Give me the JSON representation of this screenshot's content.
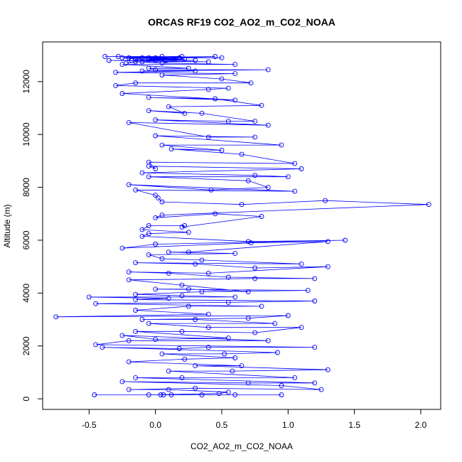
{
  "chart_data": {
    "type": "line",
    "title": "ORCAS RF19 CO2_AO2_m_CO2_NOAA",
    "xlabel": "CO2_AO2_m_CO2_NOAA",
    "ylabel": "Altitude (m)",
    "xlim": [
      -0.85,
      2.15
    ],
    "ylim": [
      -400,
      13500
    ],
    "xticks": [
      {
        "value": -0.5,
        "label": "-0.5"
      },
      {
        "value": 0.0,
        "label": "0.0"
      },
      {
        "value": 0.5,
        "label": "0.5"
      },
      {
        "value": 1.0,
        "label": "1.0"
      },
      {
        "value": 1.5,
        "label": "1.5"
      },
      {
        "value": 2.0,
        "label": "2.0"
      }
    ],
    "yticks": [
      {
        "value": 0,
        "label": "0"
      },
      {
        "value": 2000,
        "label": "2000"
      },
      {
        "value": 4000,
        "label": "4000"
      },
      {
        "value": 6000,
        "label": "6000"
      },
      {
        "value": 8000,
        "label": "8000"
      },
      {
        "value": 10000,
        "label": "10000"
      },
      {
        "value": 12000,
        "label": "12000"
      }
    ],
    "grid": false,
    "marker": "open-circle",
    "color": "#0000ff",
    "series": [
      {
        "points": [
          [
            -0.46,
            150
          ],
          [
            0.04,
            150
          ],
          [
            0.12,
            150
          ],
          [
            0.35,
            150
          ],
          [
            0.6,
            150
          ],
          [
            0.95,
            150
          ],
          [
            0.06,
            150
          ],
          [
            -0.05,
            150
          ],
          [
            0.48,
            200
          ],
          [
            0.55,
            250
          ],
          [
            0.1,
            350
          ],
          [
            -0.2,
            350
          ],
          [
            0.3,
            400
          ],
          [
            1.25,
            350
          ],
          [
            0.95,
            500
          ],
          [
            -0.25,
            650
          ],
          [
            0.7,
            600
          ],
          [
            1.2,
            600
          ],
          [
            -0.15,
            800
          ],
          [
            0.2,
            800
          ],
          [
            1.05,
            800
          ],
          [
            0.1,
            1050
          ],
          [
            0.58,
            1050
          ],
          [
            1.3,
            1100
          ],
          [
            0.3,
            1250
          ],
          [
            0.65,
            1250
          ],
          [
            -0.2,
            1400
          ],
          [
            0.22,
            1500
          ],
          [
            0.6,
            1550
          ],
          [
            0.05,
            1700
          ],
          [
            0.52,
            1700
          ],
          [
            0.92,
            1750
          ],
          [
            -0.4,
            1950
          ],
          [
            0.18,
            1900
          ],
          [
            0.4,
            1950
          ],
          [
            1.2,
            1950
          ],
          [
            -0.45,
            2050
          ],
          [
            -0.2,
            2200
          ],
          [
            0.85,
            2200
          ],
          [
            -0.25,
            2400
          ],
          [
            0.0,
            2250
          ],
          [
            0.55,
            2300
          ],
          [
            -0.15,
            2550
          ],
          [
            0.2,
            2550
          ],
          [
            0.75,
            2500
          ],
          [
            1.1,
            2700
          ],
          [
            0.4,
            2700
          ],
          [
            -0.05,
            2850
          ],
          [
            0.9,
            2850
          ],
          [
            0.3,
            3000
          ],
          [
            -0.1,
            3000
          ],
          [
            0.7,
            3050
          ],
          [
            1.0,
            3150
          ],
          [
            -0.75,
            3100
          ],
          [
            0.4,
            3200
          ],
          [
            -0.15,
            3350
          ],
          [
            0.25,
            3500
          ],
          [
            0.8,
            3500
          ],
          [
            -0.45,
            3600
          ],
          [
            0.55,
            3650
          ],
          [
            1.2,
            3700
          ],
          [
            -0.15,
            3750
          ],
          [
            0.1,
            3800
          ],
          [
            -0.5,
            3850
          ],
          [
            0.6,
            3850
          ],
          [
            0.2,
            3900
          ],
          [
            -0.15,
            3950
          ],
          [
            0.35,
            4050
          ],
          [
            1.15,
            4100
          ],
          [
            0.0,
            4150
          ],
          [
            0.25,
            4150
          ],
          [
            0.7,
            4050
          ],
          [
            0.2,
            4300
          ],
          [
            -0.2,
            4500
          ],
          [
            0.75,
            4550
          ],
          [
            1.2,
            4550
          ],
          [
            0.55,
            4600
          ],
          [
            0.1,
            4750
          ],
          [
            -0.2,
            4800
          ],
          [
            0.4,
            4750
          ],
          [
            1.3,
            5000
          ],
          [
            0.75,
            4950
          ],
          [
            0.3,
            5100
          ],
          [
            -0.15,
            5150
          ],
          [
            1.1,
            5100
          ],
          [
            0.35,
            5250
          ],
          [
            0.05,
            5300
          ],
          [
            -0.05,
            5450
          ],
          [
            0.6,
            5500
          ],
          [
            0.1,
            5550
          ],
          [
            0.25,
            5550
          ],
          [
            1.3,
            5950
          ],
          [
            0.72,
            5900
          ],
          [
            -0.25,
            5700
          ],
          [
            0.0,
            5850
          ],
          [
            1.43,
            6000
          ],
          [
            0.7,
            5950
          ],
          [
            -0.1,
            6150
          ],
          [
            -0.05,
            6250
          ],
          [
            0.25,
            6300
          ],
          [
            -0.1,
            6400
          ],
          [
            -0.05,
            6550
          ],
          [
            0.22,
            6550
          ],
          [
            0.2,
            6500
          ],
          [
            0.8,
            6900
          ],
          [
            0.45,
            7000
          ],
          [
            0.0,
            6850
          ],
          [
            0.05,
            6950
          ],
          [
            2.06,
            7350
          ],
          [
            1.28,
            7500
          ],
          [
            0.65,
            7350
          ],
          [
            0.05,
            7450
          ],
          [
            0.02,
            7600
          ],
          [
            0.0,
            7700
          ],
          [
            -0.15,
            7900
          ],
          [
            1.05,
            7850
          ],
          [
            -0.2,
            8100
          ],
          [
            0.42,
            7900
          ],
          [
            0.85,
            8000
          ],
          [
            0.7,
            8250
          ],
          [
            -0.05,
            8400
          ],
          [
            1.0,
            8400
          ],
          [
            0.75,
            8450
          ],
          [
            -0.1,
            8550
          ],
          [
            1.1,
            8700
          ],
          [
            -0.05,
            8800
          ],
          [
            0.0,
            8700
          ],
          [
            -0.05,
            8950
          ],
          [
            1.05,
            8900
          ],
          [
            0.65,
            9250
          ],
          [
            0.12,
            9450
          ],
          [
            0.5,
            9400
          ],
          [
            0.05,
            9600
          ],
          [
            0.95,
            9600
          ],
          [
            0.0,
            9950
          ],
          [
            0.75,
            9900
          ],
          [
            0.4,
            9900
          ],
          [
            -0.2,
            10450
          ],
          [
            0.85,
            10350
          ],
          [
            0.0,
            10550
          ],
          [
            0.55,
            10500
          ],
          [
            0.75,
            10500
          ],
          [
            0.35,
            10800
          ],
          [
            -0.05,
            10900
          ],
          [
            0.22,
            10800
          ],
          [
            0.1,
            11050
          ],
          [
            0.8,
            11100
          ],
          [
            0.45,
            11350
          ],
          [
            -0.05,
            11400
          ],
          [
            0.6,
            11300
          ],
          [
            -0.25,
            11550
          ],
          [
            0.4,
            11700
          ],
          [
            0.55,
            11750
          ],
          [
            -0.3,
            11850
          ],
          [
            -0.15,
            11950
          ],
          [
            0.72,
            11950
          ],
          [
            0.5,
            12100
          ],
          [
            0.05,
            12250
          ],
          [
            0.6,
            12300
          ],
          [
            -0.3,
            12350
          ],
          [
            0.3,
            12400
          ],
          [
            -0.1,
            12400
          ],
          [
            0.85,
            12450
          ],
          [
            0.0,
            12450
          ],
          [
            -0.05,
            12500
          ],
          [
            0.25,
            12500
          ],
          [
            -0.25,
            12650
          ],
          [
            0.6,
            12650
          ],
          [
            0.05,
            12700
          ],
          [
            -0.15,
            12750
          ],
          [
            0.4,
            12750
          ],
          [
            -0.35,
            12800
          ],
          [
            0.3,
            12800
          ],
          [
            -0.05,
            12850
          ],
          [
            0.15,
            12850
          ],
          [
            -0.1,
            12900
          ],
          [
            0.5,
            12900
          ],
          [
            -0.38,
            12950
          ],
          [
            0.2,
            12950
          ],
          [
            0.0,
            12900
          ],
          [
            -0.2,
            12900
          ],
          [
            0.12,
            12850
          ],
          [
            -0.28,
            12950
          ],
          [
            0.05,
            12950
          ],
          [
            -0.15,
            12850
          ],
          [
            0.08,
            12800
          ],
          [
            -0.18,
            12800
          ],
          [
            0.22,
            12850
          ],
          [
            -0.05,
            12900
          ],
          [
            0.45,
            12950
          ],
          [
            -0.25,
            12900
          ],
          [
            0.0,
            12800
          ],
          [
            -0.1,
            12750
          ],
          [
            0.18,
            12900
          ],
          [
            -0.22,
            12700
          ]
        ]
      }
    ]
  }
}
